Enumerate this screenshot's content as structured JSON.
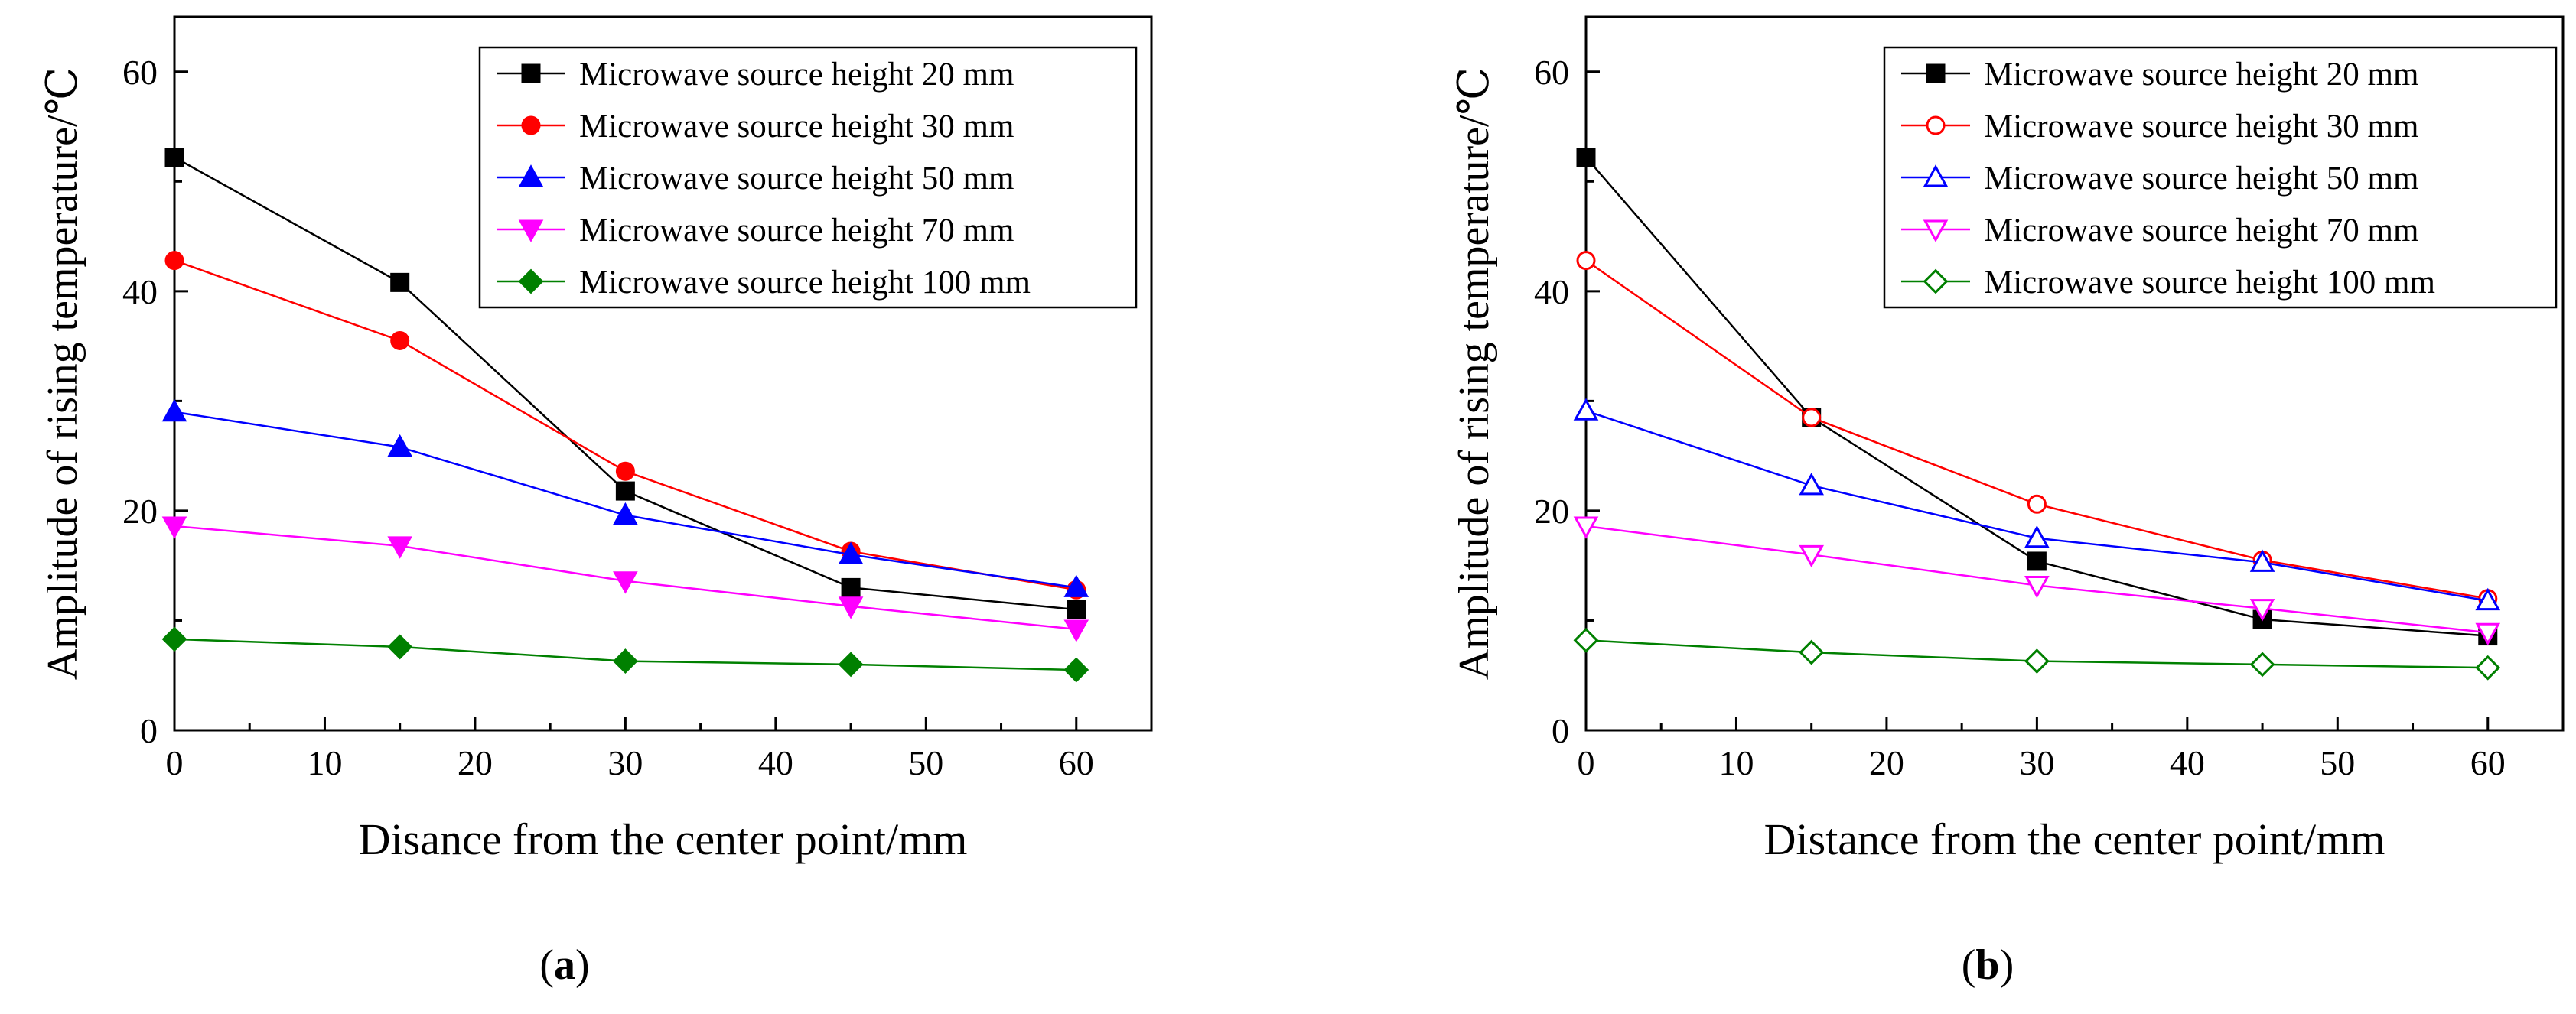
{
  "chart_data": [
    {
      "panel_label": "a",
      "type": "line",
      "xlabel": "Disance from the center point/mm",
      "ylabel": "Amplitude of rising temperature/℃",
      "xlim": [
        0,
        65
      ],
      "ylim": [
        0,
        65
      ],
      "xticks": [
        0,
        10,
        20,
        30,
        40,
        50,
        60
      ],
      "yticks": [
        0,
        20,
        40,
        60
      ],
      "legend_position": "top-right",
      "grid": false,
      "x": [
        0,
        15,
        30,
        45,
        60
      ],
      "series": [
        {
          "name": "Microwave source height 20 mm",
          "values": [
            52.2,
            40.8,
            21.8,
            13.0,
            11.0
          ],
          "color": "#000000",
          "marker": "square",
          "filled": true
        },
        {
          "name": "Microwave source height 30 mm",
          "values": [
            42.8,
            35.5,
            23.6,
            16.3,
            12.8
          ],
          "color": "#ff0000",
          "marker": "circle",
          "filled": true
        },
        {
          "name": "Microwave source height 50 mm",
          "values": [
            29.0,
            25.8,
            19.6,
            16.0,
            13.0
          ],
          "color": "#0000ff",
          "marker": "triangle-up",
          "filled": true
        },
        {
          "name": "Microwave source height 70 mm",
          "values": [
            18.6,
            16.8,
            13.6,
            11.3,
            9.2
          ],
          "color": "#ff00ff",
          "marker": "triangle-down",
          "filled": true
        },
        {
          "name": "Microwave source height 100 mm",
          "values": [
            8.3,
            7.6,
            6.3,
            6.0,
            5.5
          ],
          "color": "#008000",
          "marker": "diamond",
          "filled": true
        }
      ]
    },
    {
      "panel_label": "b",
      "type": "line",
      "xlabel": "Distance from the center point/mm",
      "ylabel": "Amplitude of rising temperature/℃",
      "xlim": [
        0,
        65
      ],
      "ylim": [
        0,
        65
      ],
      "xticks": [
        0,
        10,
        20,
        30,
        40,
        50,
        60
      ],
      "yticks": [
        0,
        20,
        40,
        60
      ],
      "legend_position": "top-right",
      "grid": false,
      "x": [
        0,
        15,
        30,
        45,
        60
      ],
      "series": [
        {
          "name": "Microwave source height 20 mm",
          "values": [
            52.2,
            28.5,
            15.4,
            10.1,
            8.6
          ],
          "color": "#000000",
          "marker": "square",
          "filled": true
        },
        {
          "name": "Microwave source height 30 mm",
          "values": [
            42.8,
            28.5,
            20.6,
            15.5,
            12.0
          ],
          "color": "#ff0000",
          "marker": "circle",
          "filled": false
        },
        {
          "name": "Microwave source height 50 mm",
          "values": [
            29.1,
            22.3,
            17.5,
            15.3,
            11.8
          ],
          "color": "#0000ff",
          "marker": "triangle-up",
          "filled": false
        },
        {
          "name": "Microwave source height 70 mm",
          "values": [
            18.6,
            16.0,
            13.2,
            11.1,
            8.9
          ],
          "color": "#ff00ff",
          "marker": "triangle-down",
          "filled": false
        },
        {
          "name": "Microwave source height 100 mm",
          "values": [
            8.2,
            7.1,
            6.3,
            6.0,
            5.7
          ],
          "color": "#008000",
          "marker": "diamond",
          "filled": false
        }
      ]
    }
  ]
}
